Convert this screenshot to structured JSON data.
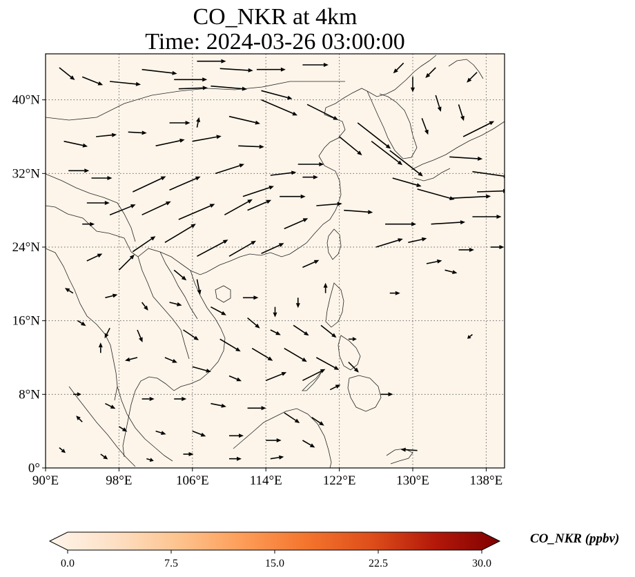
{
  "title": {
    "line1": "CO_NKR at 4km",
    "line2": "Time: 2024-03-26 03:00:00"
  },
  "map": {
    "extent": {
      "lon": [
        90,
        140
      ],
      "lat": [
        0,
        45
      ]
    },
    "gridlines": "dotted",
    "lon_ticks": [
      {
        "value": 90,
        "label": "90°E"
      },
      {
        "value": 98,
        "label": "98°E"
      },
      {
        "value": 106,
        "label": "106°E"
      },
      {
        "value": 114,
        "label": "114°E"
      },
      {
        "value": 122,
        "label": "122°E"
      },
      {
        "value": 130,
        "label": "130°E"
      },
      {
        "value": 138,
        "label": "138°E"
      }
    ],
    "lat_ticks": [
      {
        "value": 0,
        "label": "0°"
      },
      {
        "value": 8,
        "label": "8°N"
      },
      {
        "value": 16,
        "label": "16°N"
      },
      {
        "value": 24,
        "label": "24°N"
      },
      {
        "value": 32,
        "label": "32°N"
      },
      {
        "value": 40,
        "label": "40°N"
      }
    ],
    "field_color": "#fdf5ea",
    "coast_color": "#000000",
    "wind_vectors": [
      {
        "lon": 91.5,
        "lat": 43.5,
        "u": 1.5,
        "v": -1.2
      },
      {
        "lon": 94.0,
        "lat": 42.5,
        "u": 2.0,
        "v": -0.8
      },
      {
        "lon": 97.0,
        "lat": 42.0,
        "u": 3.0,
        "v": -0.3
      },
      {
        "lon": 100.5,
        "lat": 43.3,
        "u": 3.4,
        "v": -0.4
      },
      {
        "lon": 104.0,
        "lat": 42.2,
        "u": 3.2,
        "v": 0.0
      },
      {
        "lon": 106.5,
        "lat": 44.2,
        "u": 2.8,
        "v": 0.0
      },
      {
        "lon": 109.0,
        "lat": 43.4,
        "u": 3.2,
        "v": -0.2
      },
      {
        "lon": 113.0,
        "lat": 43.3,
        "u": 2.8,
        "v": 0.0
      },
      {
        "lon": 118.0,
        "lat": 43.8,
        "u": 2.5,
        "v": 0.0
      },
      {
        "lon": 104.5,
        "lat": 41.2,
        "u": 2.8,
        "v": 0.1
      },
      {
        "lon": 108.0,
        "lat": 41.5,
        "u": 3.5,
        "v": -0.3
      },
      {
        "lon": 113.5,
        "lat": 41.0,
        "u": 3.0,
        "v": -0.8
      },
      {
        "lon": 110.0,
        "lat": 38.2,
        "u": 3.0,
        "v": -0.7
      },
      {
        "lon": 113.5,
        "lat": 40.0,
        "u": 3.5,
        "v": -1.5
      },
      {
        "lon": 118.5,
        "lat": 39.5,
        "u": 3.0,
        "v": -1.5
      },
      {
        "lon": 122.0,
        "lat": 36.0,
        "u": 2.2,
        "v": -1.8
      },
      {
        "lon": 124.0,
        "lat": 37.5,
        "u": 3.2,
        "v": -2.5
      },
      {
        "lon": 125.5,
        "lat": 35.5,
        "u": 3.0,
        "v": -2.3
      },
      {
        "lon": 127.5,
        "lat": 34.5,
        "u": 3.2,
        "v": -2.5
      },
      {
        "lon": 127.8,
        "lat": 31.5,
        "u": 2.8,
        "v": -0.8
      },
      {
        "lon": 130.5,
        "lat": 30.3,
        "u": 3.6,
        "v": -1.0
      },
      {
        "lon": 134.0,
        "lat": 33.8,
        "u": 3.2,
        "v": -0.2
      },
      {
        "lon": 136.5,
        "lat": 32.2,
        "u": 3.5,
        "v": -0.5
      },
      {
        "lon": 134.0,
        "lat": 29.3,
        "u": 4.0,
        "v": 0.2
      },
      {
        "lon": 137.0,
        "lat": 30.0,
        "u": 3.0,
        "v": 0.1
      },
      {
        "lon": 136.5,
        "lat": 27.3,
        "u": 2.8,
        "v": 0.0
      },
      {
        "lon": 135.5,
        "lat": 36.0,
        "u": 3.0,
        "v": 1.5
      },
      {
        "lon": 131.0,
        "lat": 38.0,
        "u": 0.6,
        "v": -1.6
      },
      {
        "lon": 132.5,
        "lat": 40.5,
        "u": 0.5,
        "v": -1.6
      },
      {
        "lon": 135.0,
        "lat": 39.5,
        "u": 0.5,
        "v": -1.6
      },
      {
        "lon": 130.0,
        "lat": 42.5,
        "u": 0.0,
        "v": -1.5
      },
      {
        "lon": 132.5,
        "lat": 43.5,
        "u": -1.0,
        "v": -1.0
      },
      {
        "lon": 129.0,
        "lat": 44.0,
        "u": -1.0,
        "v": -1.0
      },
      {
        "lon": 137.0,
        "lat": 43.0,
        "u": -1.0,
        "v": -1.0
      },
      {
        "lon": 92.0,
        "lat": 35.5,
        "u": 2.3,
        "v": -0.5
      },
      {
        "lon": 95.5,
        "lat": 36.0,
        "u": 2.0,
        "v": 0.2
      },
      {
        "lon": 99.0,
        "lat": 36.5,
        "u": 1.8,
        "v": -0.1
      },
      {
        "lon": 103.5,
        "lat": 37.5,
        "u": 2.0,
        "v": 0.0
      },
      {
        "lon": 106.0,
        "lat": 35.5,
        "u": 2.8,
        "v": 0.5
      },
      {
        "lon": 102.0,
        "lat": 35.0,
        "u": 2.8,
        "v": 0.6
      },
      {
        "lon": 106.5,
        "lat": 37.0,
        "u": 0.2,
        "v": 1.0
      },
      {
        "lon": 111.0,
        "lat": 35.0,
        "u": 2.5,
        "v": -0.1
      },
      {
        "lon": 117.5,
        "lat": 33.0,
        "u": 2.5,
        "v": 0.0
      },
      {
        "lon": 114.5,
        "lat": 31.8,
        "u": 2.5,
        "v": 0.3
      },
      {
        "lon": 118.0,
        "lat": 31.6,
        "u": 1.5,
        "v": 0.0
      },
      {
        "lon": 92.5,
        "lat": 32.3,
        "u": 2.0,
        "v": 0.0
      },
      {
        "lon": 95.0,
        "lat": 31.5,
        "u": 2.0,
        "v": 0.0
      },
      {
        "lon": 99.5,
        "lat": 30.0,
        "u": 3.2,
        "v": 1.5
      },
      {
        "lon": 103.5,
        "lat": 30.2,
        "u": 3.0,
        "v": 1.3
      },
      {
        "lon": 108.5,
        "lat": 32.0,
        "u": 2.8,
        "v": 0.9
      },
      {
        "lon": 111.5,
        "lat": 29.5,
        "u": 3.0,
        "v": 1.0
      },
      {
        "lon": 115.5,
        "lat": 29.5,
        "u": 2.5,
        "v": 0.0
      },
      {
        "lon": 119.5,
        "lat": 28.5,
        "u": 2.5,
        "v": 0.2
      },
      {
        "lon": 122.5,
        "lat": 28.0,
        "u": 2.8,
        "v": -0.2
      },
      {
        "lon": 127.0,
        "lat": 26.5,
        "u": 3.0,
        "v": 0.0
      },
      {
        "lon": 132.0,
        "lat": 26.5,
        "u": 3.3,
        "v": 0.2
      },
      {
        "lon": 94.5,
        "lat": 28.8,
        "u": 2.2,
        "v": 0.0
      },
      {
        "lon": 97.0,
        "lat": 27.5,
        "u": 2.5,
        "v": 1.0
      },
      {
        "lon": 94.0,
        "lat": 26.5,
        "u": 1.2,
        "v": 0.0
      },
      {
        "lon": 100.5,
        "lat": 27.5,
        "u": 2.8,
        "v": 1.3
      },
      {
        "lon": 104.5,
        "lat": 27.0,
        "u": 3.5,
        "v": 1.5
      },
      {
        "lon": 109.5,
        "lat": 27.5,
        "u": 2.7,
        "v": 1.5
      },
      {
        "lon": 112.0,
        "lat": 28.0,
        "u": 2.3,
        "v": 1.0
      },
      {
        "lon": 116.0,
        "lat": 26.0,
        "u": 2.3,
        "v": 1.0
      },
      {
        "lon": 99.5,
        "lat": 23.5,
        "u": 2.2,
        "v": 1.5
      },
      {
        "lon": 103.0,
        "lat": 24.5,
        "u": 3.0,
        "v": 1.8
      },
      {
        "lon": 106.5,
        "lat": 23.0,
        "u": 3.0,
        "v": 1.6
      },
      {
        "lon": 110.0,
        "lat": 23.0,
        "u": 2.6,
        "v": 1.5
      },
      {
        "lon": 113.5,
        "lat": 23.3,
        "u": 2.2,
        "v": 1.0
      },
      {
        "lon": 118.0,
        "lat": 21.8,
        "u": 1.6,
        "v": 0.7
      },
      {
        "lon": 126.0,
        "lat": 24.0,
        "u": 2.6,
        "v": 0.8
      },
      {
        "lon": 129.5,
        "lat": 24.5,
        "u": 1.8,
        "v": 0.4
      },
      {
        "lon": 131.5,
        "lat": 22.2,
        "u": 1.5,
        "v": 0.3
      },
      {
        "lon": 133.5,
        "lat": 21.5,
        "u": 1.2,
        "v": -0.3
      },
      {
        "lon": 135.0,
        "lat": 23.7,
        "u": 1.5,
        "v": 0.0
      },
      {
        "lon": 138.5,
        "lat": 24.0,
        "u": 1.3,
        "v": 0.0
      },
      {
        "lon": 94.5,
        "lat": 22.5,
        "u": 1.5,
        "v": 0.7
      },
      {
        "lon": 98.0,
        "lat": 21.5,
        "u": 1.5,
        "v": 1.5
      },
      {
        "lon": 104.0,
        "lat": 21.5,
        "u": 1.2,
        "v": -1.0
      },
      {
        "lon": 106.5,
        "lat": 20.5,
        "u": 0.3,
        "v": -1.5
      },
      {
        "lon": 111.5,
        "lat": 18.5,
        "u": 1.5,
        "v": 0.0
      },
      {
        "lon": 115.0,
        "lat": 17.5,
        "u": 0.0,
        "v": -1.0
      },
      {
        "lon": 117.5,
        "lat": 18.5,
        "u": 0.0,
        "v": -1.0
      },
      {
        "lon": 120.5,
        "lat": 19.0,
        "u": 0.0,
        "v": 1.0
      },
      {
        "lon": 127.5,
        "lat": 19.0,
        "u": 1.0,
        "v": 0.0
      },
      {
        "lon": 93.0,
        "lat": 19.0,
        "u": -0.8,
        "v": 0.5
      },
      {
        "lon": 96.5,
        "lat": 18.5,
        "u": 1.2,
        "v": 0.3
      },
      {
        "lon": 100.5,
        "lat": 18.0,
        "u": 0.6,
        "v": -0.8
      },
      {
        "lon": 103.5,
        "lat": 18.0,
        "u": 1.2,
        "v": -0.3
      },
      {
        "lon": 108.0,
        "lat": 17.5,
        "u": 1.5,
        "v": -0.8
      },
      {
        "lon": 112.0,
        "lat": 16.3,
        "u": 1.2,
        "v": -1.0
      },
      {
        "lon": 114.5,
        "lat": 15.0,
        "u": 1.0,
        "v": -0.5
      },
      {
        "lon": 117.0,
        "lat": 15.5,
        "u": 1.5,
        "v": -1.0
      },
      {
        "lon": 120.0,
        "lat": 15.5,
        "u": 1.5,
        "v": -1.2
      },
      {
        "lon": 123.0,
        "lat": 14.0,
        "u": 0.8,
        "v": 0.0
      },
      {
        "lon": 93.5,
        "lat": 16.0,
        "u": 0.8,
        "v": -0.5
      },
      {
        "lon": 97.0,
        "lat": 15.2,
        "u": -0.5,
        "v": -1.0
      },
      {
        "lon": 100.0,
        "lat": 15.0,
        "u": 0.5,
        "v": -1.2
      },
      {
        "lon": 105.0,
        "lat": 15.0,
        "u": 1.5,
        "v": -1.0
      },
      {
        "lon": 109.0,
        "lat": 14.0,
        "u": 2.0,
        "v": -1.2
      },
      {
        "lon": 112.5,
        "lat": 13.0,
        "u": 2.0,
        "v": -1.2
      },
      {
        "lon": 116.0,
        "lat": 13.0,
        "u": 2.2,
        "v": -1.3
      },
      {
        "lon": 119.5,
        "lat": 12.0,
        "u": 2.2,
        "v": -1.2
      },
      {
        "lon": 123.0,
        "lat": 11.5,
        "u": 1.0,
        "v": -1.0
      },
      {
        "lon": 96.0,
        "lat": 12.5,
        "u": 0.0,
        "v": 1.0
      },
      {
        "lon": 100.0,
        "lat": 12.0,
        "u": -1.2,
        "v": -0.3
      },
      {
        "lon": 103.0,
        "lat": 12.0,
        "u": 1.2,
        "v": -0.5
      },
      {
        "lon": 106.0,
        "lat": 11.0,
        "u": 1.8,
        "v": -0.5
      },
      {
        "lon": 110.0,
        "lat": 10.0,
        "u": 1.2,
        "v": -0.5
      },
      {
        "lon": 114.0,
        "lat": 9.5,
        "u": 2.0,
        "v": 0.8
      },
      {
        "lon": 118.0,
        "lat": 9.5,
        "u": 2.2,
        "v": 1.1
      },
      {
        "lon": 121.0,
        "lat": 8.5,
        "u": 1.0,
        "v": 0.5
      },
      {
        "lon": 126.5,
        "lat": 8.0,
        "u": 1.2,
        "v": 0.0
      },
      {
        "lon": 93.0,
        "lat": 8.0,
        "u": 0.8,
        "v": 0.0
      },
      {
        "lon": 96.5,
        "lat": 7.0,
        "u": 1.0,
        "v": -0.5
      },
      {
        "lon": 100.5,
        "lat": 7.5,
        "u": 1.2,
        "v": 0.0
      },
      {
        "lon": 104.0,
        "lat": 7.5,
        "u": 1.2,
        "v": 0.0
      },
      {
        "lon": 108.0,
        "lat": 7.0,
        "u": 1.5,
        "v": -0.3
      },
      {
        "lon": 112.0,
        "lat": 6.5,
        "u": 1.8,
        "v": 0.0
      },
      {
        "lon": 116.0,
        "lat": 6.0,
        "u": 1.5,
        "v": -1.0
      },
      {
        "lon": 119.0,
        "lat": 5.5,
        "u": 1.2,
        "v": -0.8
      },
      {
        "lon": 94.0,
        "lat": 5.0,
        "u": -0.6,
        "v": 0.6
      },
      {
        "lon": 98.0,
        "lat": 4.5,
        "u": 0.8,
        "v": -0.5
      },
      {
        "lon": 102.0,
        "lat": 4.0,
        "u": 1.0,
        "v": -0.3
      },
      {
        "lon": 106.0,
        "lat": 4.0,
        "u": 1.3,
        "v": -0.5
      },
      {
        "lon": 110.0,
        "lat": 3.5,
        "u": 1.4,
        "v": 0.0
      },
      {
        "lon": 114.0,
        "lat": 3.0,
        "u": 1.5,
        "v": 0.0
      },
      {
        "lon": 118.0,
        "lat": 3.0,
        "u": 1.2,
        "v": -0.7
      },
      {
        "lon": 91.5,
        "lat": 2.2,
        "u": 0.6,
        "v": -0.5
      },
      {
        "lon": 96.0,
        "lat": 1.5,
        "u": 0.7,
        "v": -0.5
      },
      {
        "lon": 101.0,
        "lat": 1.0,
        "u": 0.7,
        "v": -0.2
      },
      {
        "lon": 105.0,
        "lat": 1.5,
        "u": 1.0,
        "v": 0.0
      },
      {
        "lon": 110.0,
        "lat": 1.0,
        "u": 1.2,
        "v": 0.0
      },
      {
        "lon": 114.5,
        "lat": 1.0,
        "u": 1.3,
        "v": 0.2
      },
      {
        "lon": 130.5,
        "lat": 1.9,
        "u": -1.6,
        "v": 0.1
      },
      {
        "lon": 136.5,
        "lat": 14.5,
        "u": -0.5,
        "v": -0.4
      }
    ]
  },
  "colorbar": {
    "label": "CO_NKR (ppbv)",
    "ticks": [
      "0.0",
      "7.5",
      "15.0",
      "22.5",
      "30.0"
    ],
    "range": [
      0.0,
      30.0
    ],
    "stops": [
      "#fff5eb",
      "#fde0c5",
      "#fdc38e",
      "#fd9d58",
      "#f4742d",
      "#de4e1a",
      "#b3180a",
      "#7f0000"
    ]
  }
}
